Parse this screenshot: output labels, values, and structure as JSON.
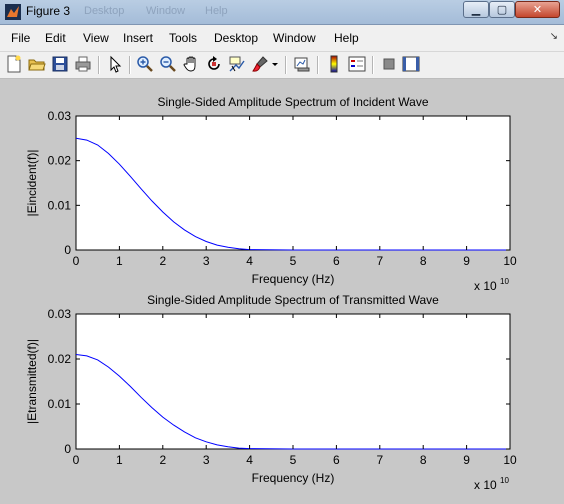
{
  "window": {
    "title": "Figure 3",
    "ghost_menu": [
      "Desktop",
      "Window",
      "Help"
    ],
    "controls": [
      "minimize",
      "maximize",
      "close"
    ]
  },
  "menu": [
    "File",
    "Edit",
    "View",
    "Insert",
    "Tools",
    "Desktop",
    "Window",
    "Help"
  ],
  "toolbar_icons": [
    "new-figure-icon",
    "open-file-icon",
    "save-icon",
    "print-icon",
    "edit-plot-arrow-icon",
    "zoom-in-icon",
    "zoom-out-icon",
    "pan-hand-icon",
    "rotate-3d-icon",
    "data-cursor-icon",
    "brush-icon",
    "brush-dropdown-icon",
    "link-plot-icon",
    "insert-colorbar-icon",
    "insert-legend-icon",
    "hide-plot-tools-icon",
    "show-plot-tools-icon"
  ],
  "chart_data": [
    {
      "type": "line",
      "title": "Single-Sided Amplitude Spectrum of Incident Wave",
      "xlabel": "Frequency (Hz)",
      "ylabel": "|Eincident(f)|",
      "xlim": [
        0,
        10
      ],
      "ylim": [
        0,
        0.03
      ],
      "x_multiplier": "x 10",
      "x_multiplier_exp": "10",
      "xticks": [
        "0",
        "1",
        "2",
        "3",
        "4",
        "5",
        "6",
        "7",
        "8",
        "9",
        "10"
      ],
      "yticks": [
        "0",
        "0.01",
        "0.02",
        "0.03"
      ],
      "color": "#0000ff",
      "series": [
        {
          "x": [
            0,
            0.25,
            0.5,
            0.75,
            1,
            1.25,
            1.5,
            1.75,
            2,
            2.25,
            2.5,
            2.75,
            3,
            3.25,
            3.5,
            3.75,
            4,
            5,
            6,
            7,
            8,
            9,
            10
          ],
          "y": [
            0.025,
            0.0246,
            0.0235,
            0.0216,
            0.0192,
            0.0165,
            0.0137,
            0.011,
            0.0085,
            0.0063,
            0.0045,
            0.003,
            0.0019,
            0.0011,
            0.0006,
            0.0003,
            0.0001,
            0,
            0,
            0,
            0,
            0,
            0
          ]
        }
      ]
    },
    {
      "type": "line",
      "title": "Single-Sided Amplitude Spectrum of Transmitted Wave",
      "xlabel": "Frequency (Hz)",
      "ylabel": "|Etransmitted(f)|",
      "xlim": [
        0,
        10
      ],
      "ylim": [
        0,
        0.03
      ],
      "x_multiplier": "x 10",
      "x_multiplier_exp": "10",
      "xticks": [
        "0",
        "1",
        "2",
        "3",
        "4",
        "5",
        "6",
        "7",
        "8",
        "9",
        "10"
      ],
      "yticks": [
        "0",
        "0.01",
        "0.02",
        "0.03"
      ],
      "color": "#0000ff",
      "series": [
        {
          "x": [
            0,
            0.25,
            0.5,
            0.75,
            1,
            1.25,
            1.5,
            1.75,
            2,
            2.25,
            2.5,
            2.75,
            3,
            3.25,
            3.5,
            3.75,
            4,
            5,
            6,
            7,
            8,
            9,
            10
          ],
          "y": [
            0.021,
            0.0207,
            0.0198,
            0.0182,
            0.0162,
            0.0139,
            0.0115,
            0.0092,
            0.0071,
            0.0053,
            0.0038,
            0.0025,
            0.0016,
            0.0009,
            0.0005,
            0.0002,
            0.0001,
            0,
            0,
            0,
            0,
            0,
            0
          ]
        }
      ]
    }
  ]
}
